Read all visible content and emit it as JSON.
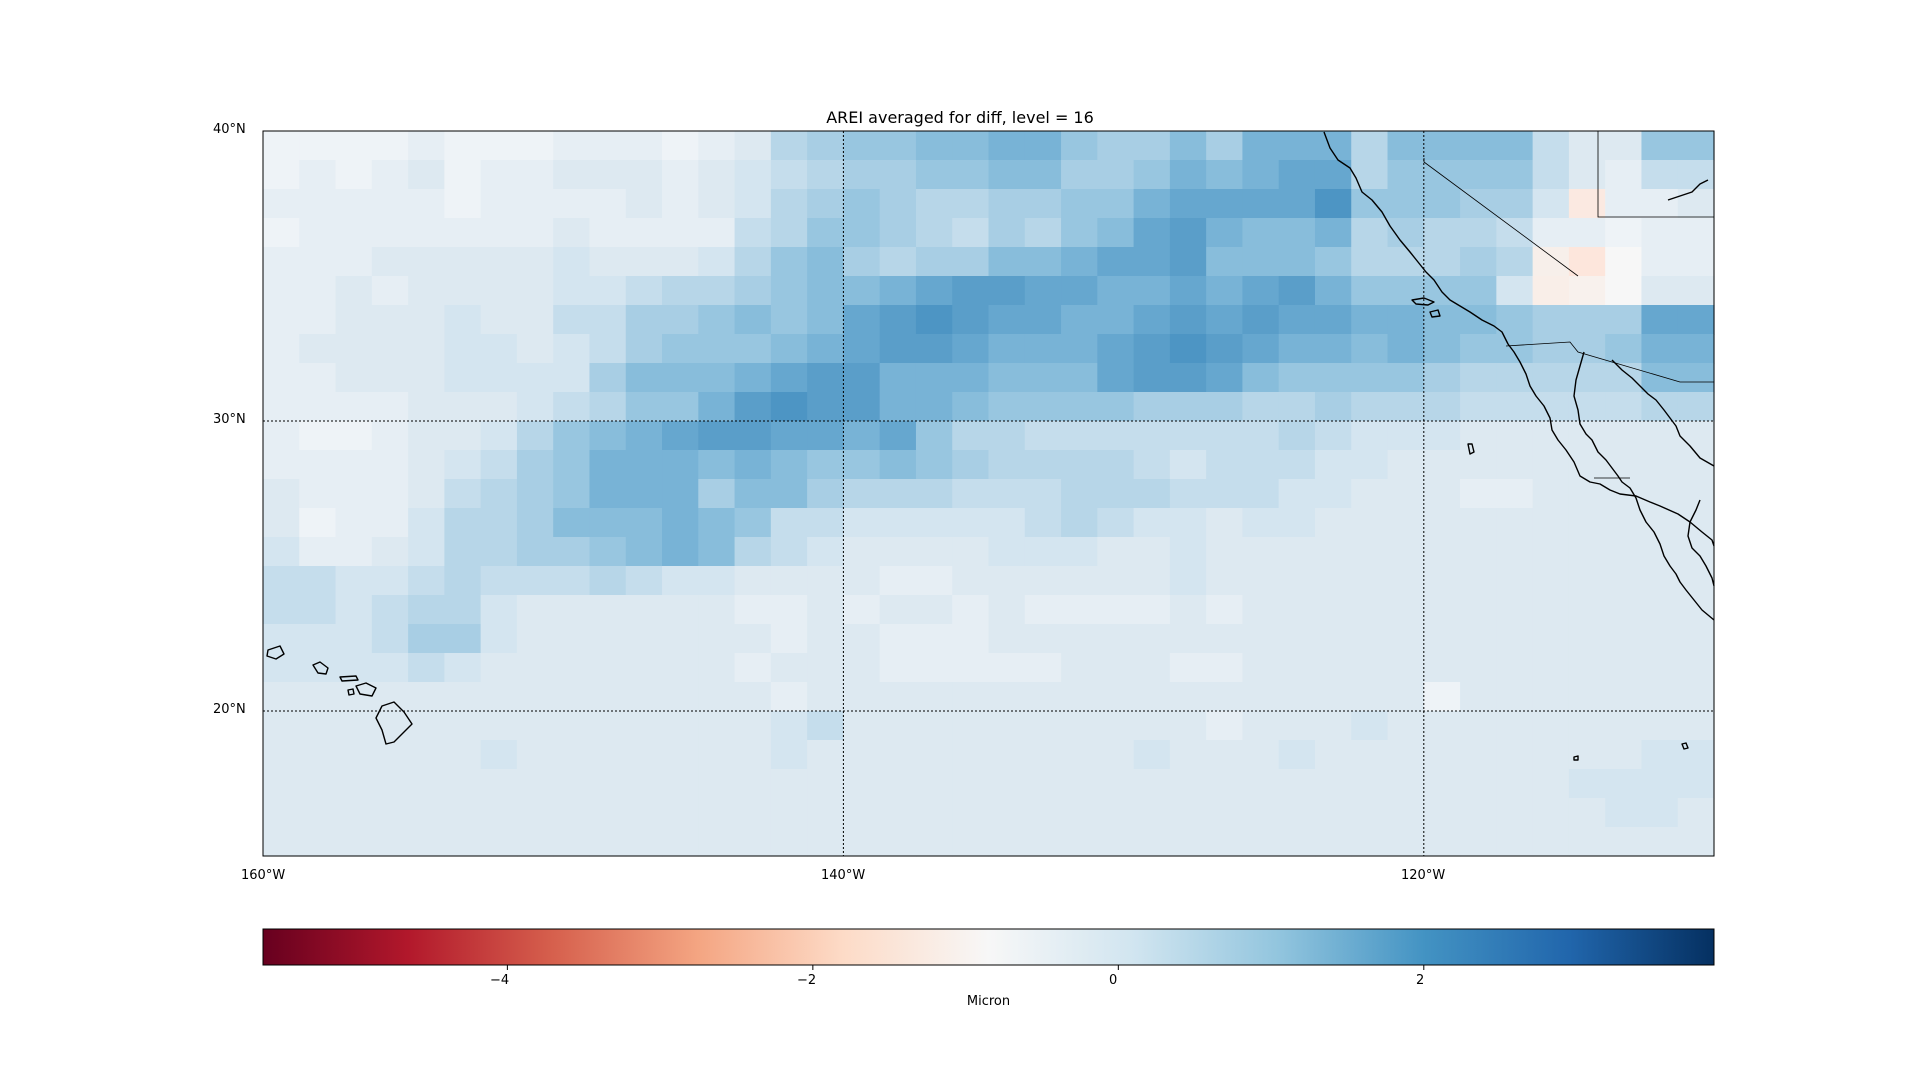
{
  "title": "AREI averaged for diff, level = 16",
  "map": {
    "lon_range": [
      -160,
      -110
    ],
    "lat_range": [
      15,
      40
    ],
    "lat_labels": [
      "40°N",
      "30°N",
      "20°N"
    ],
    "lon_labels": [
      "160°W",
      "140°W",
      "120°W"
    ],
    "gridlines": {
      "lat": [
        30,
        20
      ],
      "lon": [
        -140,
        -120
      ]
    },
    "colormap": "RdBu"
  },
  "colorbar": {
    "label": "Micron",
    "vmin": -5.6,
    "vmax": 3.9,
    "tick_values": [
      -4,
      -2,
      0,
      2
    ],
    "tick_labels": [
      "−4",
      "−2",
      "0",
      "2"
    ]
  },
  "field_grid_rows": [
    "1,1,1,1,2,1,1,1,2,2,2,1,2,3,6,7,8,8,9,9,10,10,8,7,7,9,7,10,10,10,6,9,9,9,9,5,3,3,8,8",
    "1,2,1,2,3,1,2,2,3,3,3,2,3,4,5,6,7,7,8,8,9,9,7,7,8,10,9,10,11,11,6,8,8,8,8,5,3,2,5,5",
    "2,2,2,2,2,1,2,2,2,2,3,2,3,4,6,7,8,7,6,6,7,7,8,8,10,11,11,11,11,13,8,8,8,7,7,4,3,2,2,3",
    "1,2,2,2,2,2,2,2,3,2,2,2,2,5,6,8,8,7,6,5,7,6,8,9,11,12,10,9,9,10,6,7,6,6,5,2,2,1,2,2",
    "2,2,2,3,3,3,3,3,4,3,3,3,4,6,8,9,7,6,7,7,9,9,10,11,11,12,9,9,9,8,6,6,6,7,6,1,0,0,2,2",
    "2,2,3,2,3,3,3,3,4,4,5,6,6,7,8,9,9,10,11,12,12,11,11,10,10,11,10,11,12,10,8,8,8,8,4,1,0,0,3,3",
    "2,2,3,3,3,4,3,3,5,5,7,7,8,9,8,9,11,12,13,12,11,11,10,10,11,12,11,12,11,11,10,10,9,9,8,7,7,7,11,11",
    "2,3,3,3,3,4,4,3,4,5,7,8,8,8,9,10,11,12,12,11,10,10,10,11,12,13,12,11,10,10,9,10,9,8,8,7,7,8,10,10",
    "2,2,3,3,3,4,4,4,4,7,9,9,9,10,11,12,12,10,10,10,9,9,9,11,12,12,11,9,8,8,8,8,7,6,6,6,6,6,9,9",
    "2,2,2,2,3,3,3,4,5,6,8,8,10,12,13,12,12,10,10,9,8,8,8,8,7,7,7,6,6,7,6,6,6,5,5,5,5,5,6,6",
    "2,1,1,2,3,3,4,6,8,9,10,11,12,12,11,11,10,11,8,6,6,5,5,5,5,5,5,5,6,5,4,4,4,3,3,3,3,3,3,3",
    "2,2,2,2,3,4,5,7,8,10,10,10,9,10,9,8,8,9,8,7,6,6,6,6,5,4,5,5,5,4,4,3,3,3,3,3,3,3,3,3",
    "3,2,2,2,3,5,6,7,8,10,10,10,7,9,9,7,6,6,6,5,5,5,6,6,6,5,5,5,4,4,3,3,3,2,2,3,3,3,3,3",
    "3,1,2,2,4,6,6,7,9,9,9,10,9,8,5,5,4,4,4,4,4,5,6,5,4,4,3,4,4,3,3,3,3,3,3,3,3,3,3,3",
    "4,2,2,3,4,6,6,7,7,8,9,10,9,6,5,4,3,3,3,3,4,4,4,3,3,4,3,3,3,3,3,3,3,3,3,3,3,3,3,3",
    "5,5,4,4,5,6,5,5,5,6,5,4,4,3,3,3,3,2,2,3,3,3,3,3,3,4,3,3,3,3,3,3,3,3,3,3,3,3,3,3",
    "5,5,4,5,6,6,4,3,3,3,3,3,3,2,2,3,2,3,3,2,3,2,2,2,2,3,2,3,3,3,3,3,3,3,3,3,3,3,3,3",
    "4,4,4,5,7,7,4,3,3,3,3,3,3,3,2,3,3,2,2,2,3,3,3,3,3,3,3,3,3,3,3,3,3,3,3,3,3,3,3,3",
    "4,4,4,4,5,4,3,3,3,3,3,3,3,2,3,3,3,2,2,2,2,2,3,3,3,2,2,3,3,3,3,3,3,3,3,3,3,3,3,3",
    "3,3,3,3,3,3,3,3,3,3,3,3,3,3,2,3,3,3,3,3,3,3,3,3,3,3,3,3,3,3,3,3,1,3,3,3,3,3,3,3",
    "3,3,3,3,3,3,3,3,3,3,3,3,3,3,4,5,3,3,3,3,3,3,3,3,3,3,2,3,3,3,4,3,3,3,3,3,3,3,3,3",
    "3,3,3,3,3,3,4,3,3,3,3,3,3,3,4,3,3,3,3,3,3,3,3,3,4,3,3,3,4,3,3,3,3,3,3,3,3,3,4,4",
    "3,3,3,3,3,3,3,3,3,3,3,3,3,3,3,3,3,3,3,3,3,3,3,3,3,3,3,3,3,3,3,3,3,3,3,3,4,4,4,4",
    "3,3,3,3,3,3,3,3,3,3,3,3,3,3,3,3,3,3,3,3,3,3,3,3,3,3,3,3,3,3,3,3,3,3,3,3,3,4,4,3",
    "3,3,3,3,3,3,3,3,3,3,3,3,3,3,3,3,3,3,3,3,3,3,3,3,3,3,3,3,3,3,3,3,3,3,3,3,3,3,3,3"
  ]
}
